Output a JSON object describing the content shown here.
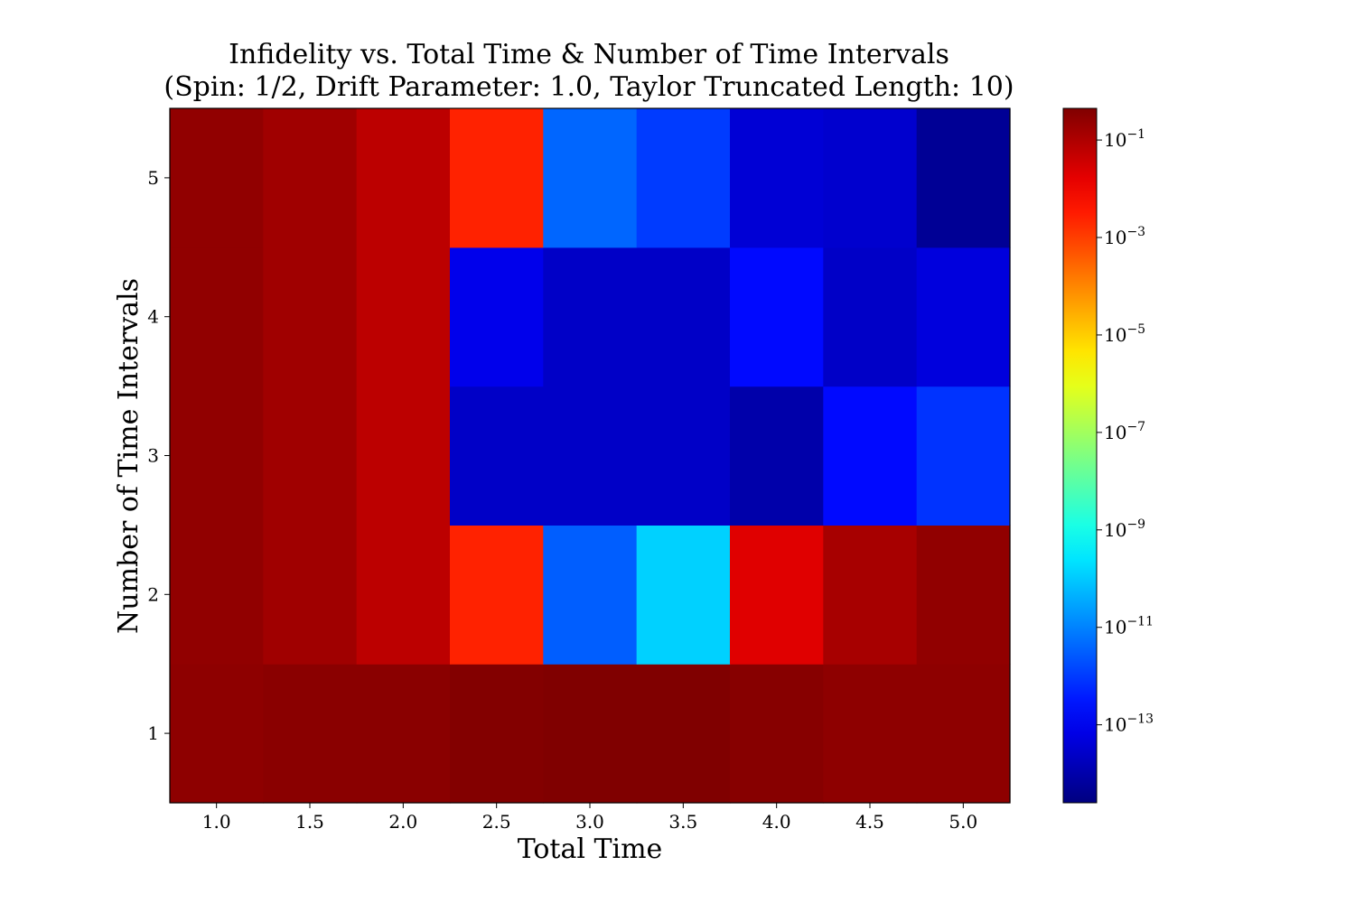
{
  "chart_data": {
    "type": "heatmap",
    "title": "Infidelity vs. Total Time & Number of Time Intervals",
    "subtitle": "(Spin: 1/2, Drift Parameter: 1.0, Taylor Truncated Length: 10)",
    "xlabel": "Total Time",
    "ylabel": "Number of Time Intervals",
    "x": [
      "1.0",
      "1.5",
      "2.0",
      "2.5",
      "3.0",
      "3.5",
      "4.0",
      "4.5",
      "5.0"
    ],
    "y": [
      "1",
      "2",
      "3",
      "4",
      "5"
    ],
    "z_log10": [
      [
        -0.55,
        -0.5,
        -0.5,
        -0.4,
        -0.3,
        -0.3,
        -0.45,
        -0.55,
        -0.55
      ],
      [
        -0.6,
        -0.8,
        -1.2,
        -2.6,
        -11.5,
        -9.9,
        -1.7,
        -0.9,
        -0.6
      ],
      [
        -0.6,
        -0.8,
        -1.2,
        -13.6,
        -13.6,
        -13.6,
        -14.0,
        -12.7,
        -12.1
      ],
      [
        -0.6,
        -0.8,
        -1.2,
        -13.1,
        -13.6,
        -13.6,
        -12.7,
        -13.6,
        -13.3
      ],
      [
        -0.6,
        -0.8,
        -1.2,
        -2.6,
        -11.4,
        -12.0,
        -13.4,
        -13.5,
        -14.3
      ]
    ],
    "colorbar": {
      "scale": "log",
      "colormap": "jet",
      "range_log10": [
        -14.6,
        -0.35
      ],
      "ticks": [
        {
          "exp": -1,
          "label": "10",
          "sup": "−1"
        },
        {
          "exp": -3,
          "label": "10",
          "sup": "−3"
        },
        {
          "exp": -5,
          "label": "10",
          "sup": "−5"
        },
        {
          "exp": -7,
          "label": "10",
          "sup": "−7"
        },
        {
          "exp": -9,
          "label": "10",
          "sup": "−9"
        },
        {
          "exp": -11,
          "label": "10",
          "sup": "−11"
        },
        {
          "exp": -13,
          "label": "10",
          "sup": "−13"
        }
      ]
    },
    "grid": false
  }
}
